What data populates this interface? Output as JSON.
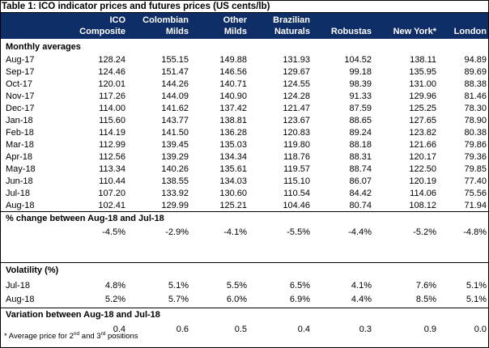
{
  "title": "Table 1:  ICO indicator prices and futures prices (US cents/lb)",
  "columns": [
    {
      "line1": "ICO",
      "line2": "Composite"
    },
    {
      "line1": "Colombian",
      "line2": "Milds"
    },
    {
      "line1": "Other",
      "line2": "Milds"
    },
    {
      "line1": "Brazilian",
      "line2": "Naturals"
    },
    {
      "line1": "",
      "line2": "Robustas"
    },
    {
      "line1": "",
      "line2": "New York*"
    },
    {
      "line1": "",
      "line2": "London"
    }
  ],
  "monthly_heading": "Monthly averages",
  "monthly": [
    {
      "label": "Aug-17",
      "values": [
        "128.24",
        "155.15",
        "149.88",
        "131.93",
        "104.52",
        "138.11",
        "94.89"
      ]
    },
    {
      "label": "Sep-17",
      "values": [
        "124.46",
        "151.47",
        "146.56",
        "129.67",
        "99.18",
        "135.95",
        "89.69"
      ]
    },
    {
      "label": "Oct-17",
      "values": [
        "120.01",
        "144.26",
        "140.71",
        "124.55",
        "98.39",
        "131.00",
        "88.38"
      ]
    },
    {
      "label": "Nov-17",
      "values": [
        "117.26",
        "144.09",
        "140.90",
        "124.28",
        "91.33",
        "129.96",
        "81.46"
      ]
    },
    {
      "label": "Dec-17",
      "values": [
        "114.00",
        "141.62",
        "137.42",
        "121.47",
        "87.59",
        "125.25",
        "78.30"
      ]
    },
    {
      "label": "Jan-18",
      "values": [
        "115.60",
        "143.77",
        "138.81",
        "123.67",
        "88.65",
        "127.65",
        "78.90"
      ]
    },
    {
      "label": "Feb-18",
      "values": [
        "114.19",
        "141.50",
        "136.28",
        "120.83",
        "89.24",
        "123.82",
        "80.38"
      ]
    },
    {
      "label": "Mar-18",
      "values": [
        "112.99",
        "139.45",
        "135.03",
        "119.80",
        "88.18",
        "121.66",
        "79.86"
      ]
    },
    {
      "label": "Apr-18",
      "values": [
        "112.56",
        "139.29",
        "134.34",
        "118.76",
        "88.31",
        "120.17",
        "79.36"
      ]
    },
    {
      "label": "May-18",
      "values": [
        "113.34",
        "140.26",
        "135.61",
        "119.57",
        "88.74",
        "122.50",
        "79.85"
      ]
    },
    {
      "label": "Jun-18",
      "values": [
        "110.44",
        "138.55",
        "134.03",
        "115.10",
        "86.07",
        "120.19",
        "77.40"
      ]
    },
    {
      "label": "Jul-18",
      "values": [
        "107.20",
        "133.92",
        "130.60",
        "110.54",
        "84.42",
        "114.06",
        "75.56"
      ]
    },
    {
      "label": "Aug-18",
      "values": [
        "102.41",
        "129.99",
        "125.21",
        "104.46",
        "80.74",
        "108.12",
        "71.94"
      ]
    }
  ],
  "pct_change_heading": "% change between Aug-18 and Jul-18",
  "pct_change": [
    "-4.5%",
    "-2.9%",
    "-4.1%",
    "-5.5%",
    "-4.4%",
    "-5.2%",
    "-4.8%"
  ],
  "volatility_heading": "Volatility (%)",
  "volatility": [
    {
      "label": "Jul-18",
      "values": [
        "4.8%",
        "5.1%",
        "5.5%",
        "6.5%",
        "4.1%",
        "7.6%",
        "5.1%"
      ]
    },
    {
      "label": "Aug-18",
      "values": [
        "5.2%",
        "5.7%",
        "6.0%",
        "6.9%",
        "4.4%",
        "8.5%",
        "5.1%"
      ]
    }
  ],
  "variation_heading": "Variation between Aug-18 and Jul-18",
  "variation": [
    "0.4",
    "0.6",
    "0.5",
    "0.4",
    "0.3",
    "0.9",
    "0.0"
  ],
  "footnote": {
    "pre": "* Average price for 2",
    "sup1": "nd",
    "mid": " and 3",
    "sup2": "rd",
    "post": " positions"
  }
}
